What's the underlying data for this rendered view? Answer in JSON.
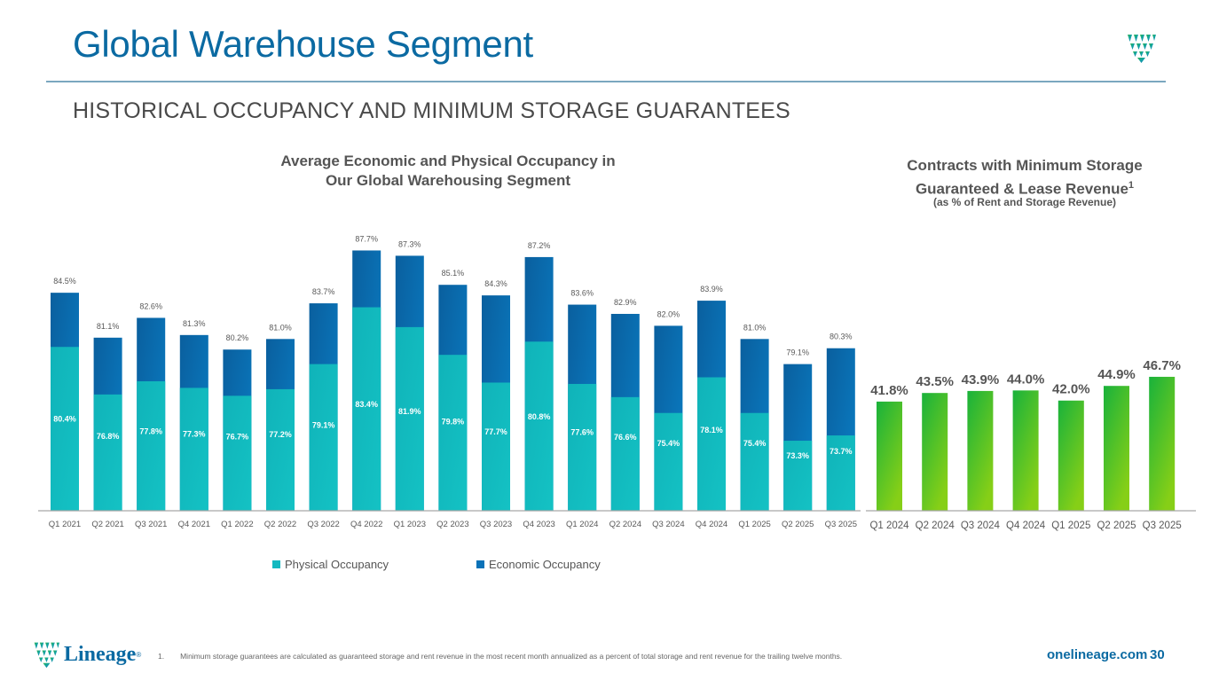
{
  "header": {
    "title": "Global Warehouse Segment",
    "subtitle": "HISTORICAL OCCUPANCY AND MINIMUM STORAGE GUARANTEES"
  },
  "icons": {
    "top_logo": "lineage-shield-logo-icon",
    "footer_logo": "lineage-shield-logo-icon"
  },
  "colors": {
    "brand_blue": "#0b6aa2",
    "physical": "#12b9c0",
    "economic": "#0a72b8",
    "green_top": "#1db33a",
    "green_bottom": "#7ccc1a"
  },
  "chart_data": [
    {
      "type": "bar",
      "stacking": "overlapped",
      "title": "Average Economic and Physical Occupancy in Our Global Warehousing Segment",
      "title_line1": "Average Economic and Physical Occupancy in",
      "title_line2": "Our Global Warehousing Segment",
      "categories": [
        "Q1 2021",
        "Q2 2021",
        "Q3 2021",
        "Q4 2021",
        "Q1 2022",
        "Q2 2022",
        "Q3 2022",
        "Q4 2022",
        "Q1 2023",
        "Q2 2023",
        "Q3 2023",
        "Q4 2023",
        "Q1 2024",
        "Q2 2024",
        "Q3 2024",
        "Q4 2024",
        "Q1 2025",
        "Q2 2025",
        "Q3 2025"
      ],
      "series": [
        {
          "name": "Physical Occupancy",
          "values": [
            80.4,
            76.8,
            77.8,
            77.3,
            76.7,
            77.2,
            79.1,
            83.4,
            81.9,
            79.8,
            77.7,
            80.8,
            77.6,
            76.6,
            75.4,
            78.1,
            75.4,
            73.3,
            73.7
          ]
        },
        {
          "name": "Economic Occupancy",
          "values": [
            84.5,
            81.1,
            82.6,
            81.3,
            80.2,
            81.0,
            83.7,
            87.7,
            87.3,
            85.1,
            84.3,
            87.2,
            83.6,
            82.9,
            82.0,
            83.9,
            81.0,
            79.1,
            80.3
          ]
        }
      ],
      "value_labels": {
        "physical": [
          "80.4%",
          "76.8%",
          "77.8%",
          "77.3%",
          "76.7%",
          "77.2%",
          "79.1%",
          "83.4%",
          "81.9%",
          "79.8%",
          "77.7%",
          "80.8%",
          "77.6%",
          "76.6%",
          "75.4%",
          "78.1%",
          "75.4%",
          "73.3%",
          "73.7%"
        ],
        "economic": [
          "84.5%",
          "81.1%",
          "82.6%",
          "81.3%",
          "80.2%",
          "81.0%",
          "83.7%",
          "87.7%",
          "87.3%",
          "85.1%",
          "84.3%",
          "87.2%",
          "83.6%",
          "82.9%",
          "82.0%",
          "83.9%",
          "81.0%",
          "79.1%",
          "80.3%"
        ]
      },
      "xlabel": "",
      "ylabel": "",
      "ylim": [
        68,
        90
      ],
      "grid": false,
      "legend": [
        "Physical Occupancy",
        "Economic Occupancy"
      ],
      "legend_position": "bottom"
    },
    {
      "type": "bar",
      "title": "Contracts with Minimum Storage Guaranteed & Lease Revenue",
      "title_line1": "Contracts with Minimum Storage",
      "title_line2": "Guaranteed & Lease Revenue",
      "title_superscript": "1",
      "subtitle": "(as % of Rent and Storage Revenue)",
      "categories": [
        "Q1 2024",
        "Q2 2024",
        "Q3 2024",
        "Q4 2024",
        "Q1 2025",
        "Q2 2025",
        "Q3 2025"
      ],
      "values": [
        41.8,
        43.5,
        43.9,
        44.0,
        42.0,
        44.9,
        46.7
      ],
      "value_labels": [
        "41.8%",
        "43.5%",
        "43.9%",
        "44.0%",
        "42.0%",
        "44.9%",
        "46.7%"
      ],
      "xlabel": "",
      "ylabel": "",
      "ylim": [
        20.2,
        50
      ],
      "grid": false,
      "legend": []
    }
  ],
  "footer": {
    "logo_text": "Lineage",
    "logo_reg": "®",
    "footnote_number": "1.",
    "footnote_text": "Minimum storage guarantees are calculated as guaranteed storage and rent revenue in the most recent month annualized as a percent of total storage and rent revenue for the trailing twelve months.",
    "website": "onelineage.com",
    "page_number": "30"
  }
}
